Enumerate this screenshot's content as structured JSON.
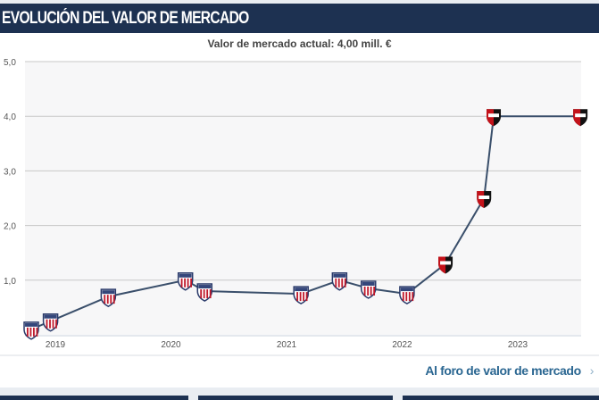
{
  "header": {
    "title": "EVOLUCIÓN DEL VALOR DE MERCADO"
  },
  "footer": {
    "link_label": "Al foro de valor de mercado",
    "chevron_icon": "chevron-right-icon"
  },
  "colors": {
    "header_bg": "#1d3151",
    "line": "#3a4f6b",
    "link": "#2a6691"
  },
  "chart_data": {
    "type": "line",
    "title": "Valor de mercado actual: 4,00 mill. €",
    "xlabel": "",
    "ylabel": "",
    "ylim": [
      0,
      5
    ],
    "y_ticks": [
      "5,0",
      "4,0",
      "3,0",
      "2,0",
      "1,0"
    ],
    "x_ticks": [
      "2019",
      "2020",
      "2021",
      "2022",
      "2023"
    ],
    "grid": true,
    "points": [
      {
        "date": "2018-10",
        "value": 0.1,
        "club": "Junior"
      },
      {
        "date": "2018-12",
        "value": 0.25,
        "club": "Junior"
      },
      {
        "date": "2019-06",
        "value": 0.7,
        "club": "Junior"
      },
      {
        "date": "2020-02",
        "value": 1.0,
        "club": "Junior"
      },
      {
        "date": "2020-04",
        "value": 0.8,
        "club": "Junior"
      },
      {
        "date": "2021-02",
        "value": 0.75,
        "club": "Junior"
      },
      {
        "date": "2021-06",
        "value": 1.0,
        "club": "Junior"
      },
      {
        "date": "2021-09",
        "value": 0.85,
        "club": "Junior"
      },
      {
        "date": "2022-01",
        "value": 0.75,
        "club": "Junior"
      },
      {
        "date": "2022-05",
        "value": 1.3,
        "club": "Newell's"
      },
      {
        "date": "2022-09",
        "value": 2.5,
        "club": "Newell's"
      },
      {
        "date": "2022-10",
        "value": 4.0,
        "club": "Newell's"
      },
      {
        "date": "2023-07",
        "value": 4.0,
        "club": "Newell's"
      }
    ]
  }
}
